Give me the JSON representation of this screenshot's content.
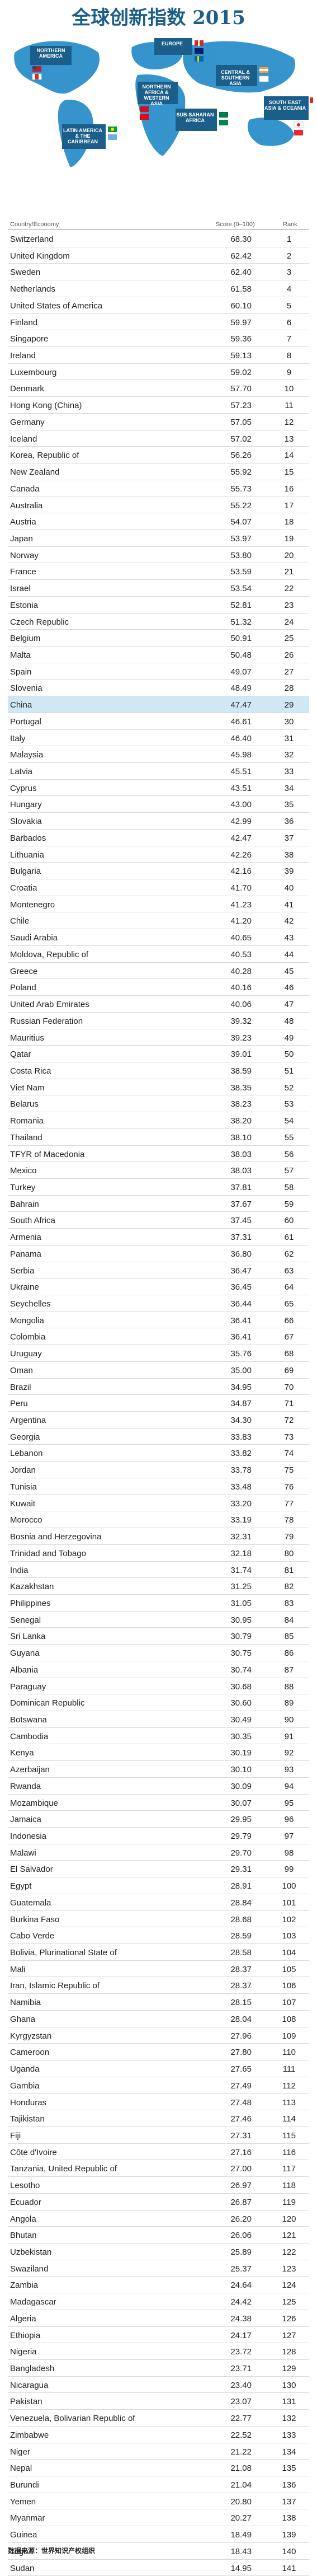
{
  "title": "全球创新指数 2015",
  "map_regions": [
    {
      "label": "NORTHERN AMERICA"
    },
    {
      "label": "EUROPE"
    },
    {
      "label": "NORTHERN AFRICA & WESTERN ASIA"
    },
    {
      "label": "CENTRAL & SOUTHERN ASIA"
    },
    {
      "label": "SOUTH EAST ASIA & OCEANIA"
    },
    {
      "label": "LATIN AMERICA & THE CARIBBEAN"
    },
    {
      "label": "SUB-SAHARAN AFRICA"
    }
  ],
  "colors": {
    "title": "#1b5e8a",
    "map_bg": "#2b8fc9",
    "highlight": "#cfe8f4"
  },
  "table": {
    "headers": {
      "country": "Country/Economy",
      "score": "Score (0–100)",
      "rank": "Rank"
    }
  },
  "chart_data": {
    "type": "table",
    "columns": [
      "Country/Economy",
      "Score (0–100)",
      "Rank"
    ],
    "rows": [
      [
        "Switzerland",
        "68.30",
        "1"
      ],
      [
        "United Kingdom",
        "62.42",
        "2"
      ],
      [
        "Sweden",
        "62.40",
        "3"
      ],
      [
        "Netherlands",
        "61.58",
        "4"
      ],
      [
        "United States of America",
        "60.10",
        "5"
      ],
      [
        "Finland",
        "59.97",
        "6"
      ],
      [
        "Singapore",
        "59.36",
        "7"
      ],
      [
        "Ireland",
        "59.13",
        "8"
      ],
      [
        "Luxembourg",
        "59.02",
        "9"
      ],
      [
        "Denmark",
        "57.70",
        "10"
      ],
      [
        "Hong Kong (China)",
        "57.23",
        "11"
      ],
      [
        "Germany",
        "57.05",
        "12"
      ],
      [
        "Iceland",
        "57.02",
        "13"
      ],
      [
        "Korea, Republic of",
        "56.26",
        "14"
      ],
      [
        "New Zealand",
        "55.92",
        "15"
      ],
      [
        "Canada",
        "55.73",
        "16"
      ],
      [
        "Australia",
        "55.22",
        "17"
      ],
      [
        "Austria",
        "54.07",
        "18"
      ],
      [
        "Japan",
        "53.97",
        "19"
      ],
      [
        "Norway",
        "53.80",
        "20"
      ],
      [
        "France",
        "53.59",
        "21"
      ],
      [
        "Israel",
        "53.54",
        "22"
      ],
      [
        "Estonia",
        "52.81",
        "23"
      ],
      [
        "Czech Republic",
        "51.32",
        "24"
      ],
      [
        "Belgium",
        "50.91",
        "25"
      ],
      [
        "Malta",
        "50.48",
        "26"
      ],
      [
        "Spain",
        "49.07",
        "27"
      ],
      [
        "Slovenia",
        "48.49",
        "28"
      ],
      [
        "China",
        "47.47",
        "29"
      ],
      [
        "Portugal",
        "46.61",
        "30"
      ],
      [
        "Italy",
        "46.40",
        "31"
      ],
      [
        "Malaysia",
        "45.98",
        "32"
      ],
      [
        "Latvia",
        "45.51",
        "33"
      ],
      [
        "Cyprus",
        "43.51",
        "34"
      ],
      [
        "Hungary",
        "43.00",
        "35"
      ],
      [
        "Slovakia",
        "42.99",
        "36"
      ],
      [
        "Barbados",
        "42.47",
        "37"
      ],
      [
        "Lithuania",
        "42.26",
        "38"
      ],
      [
        "Bulgaria",
        "42.16",
        "39"
      ],
      [
        "Croatia",
        "41.70",
        "40"
      ],
      [
        "Montenegro",
        "41.23",
        "41"
      ],
      [
        "Chile",
        "41.20",
        "42"
      ],
      [
        "Saudi Arabia",
        "40.65",
        "43"
      ],
      [
        "Moldova, Republic of",
        "40.53",
        "44"
      ],
      [
        "Greece",
        "40.28",
        "45"
      ],
      [
        "Poland",
        "40.16",
        "46"
      ],
      [
        "United Arab Emirates",
        "40.06",
        "47"
      ],
      [
        "Russian Federation",
        "39.32",
        "48"
      ],
      [
        "Mauritius",
        "39.23",
        "49"
      ],
      [
        "Qatar",
        "39.01",
        "50"
      ],
      [
        "Costa Rica",
        "38.59",
        "51"
      ],
      [
        "Viet Nam",
        "38.35",
        "52"
      ],
      [
        "Belarus",
        "38.23",
        "53"
      ],
      [
        "Romania",
        "38.20",
        "54"
      ],
      [
        "Thailand",
        "38.10",
        "55"
      ],
      [
        "TFYR of Macedonia",
        "38.03",
        "56"
      ],
      [
        "Mexico",
        "38.03",
        "57"
      ],
      [
        "Turkey",
        "37.81",
        "58"
      ],
      [
        "Bahrain",
        "37.67",
        "59"
      ],
      [
        "South Africa",
        "37.45",
        "60"
      ],
      [
        "Armenia",
        "37.31",
        "61"
      ],
      [
        "Panama",
        "36.80",
        "62"
      ],
      [
        "Serbia",
        "36.47",
        "63"
      ],
      [
        "Ukraine",
        "36.45",
        "64"
      ],
      [
        "Seychelles",
        "36.44",
        "65"
      ],
      [
        "Mongolia",
        "36.41",
        "66"
      ],
      [
        "Colombia",
        "36.41",
        "67"
      ],
      [
        "Uruguay",
        "35.76",
        "68"
      ],
      [
        "Oman",
        "35.00",
        "69"
      ],
      [
        "Brazil",
        "34.95",
        "70"
      ],
      [
        "Peru",
        "34.87",
        "71"
      ],
      [
        "Argentina",
        "34.30",
        "72"
      ],
      [
        "Georgia",
        "33.83",
        "73"
      ],
      [
        "Lebanon",
        "33.82",
        "74"
      ],
      [
        "Jordan",
        "33.78",
        "75"
      ],
      [
        "Tunisia",
        "33.48",
        "76"
      ],
      [
        "Kuwait",
        "33.20",
        "77"
      ],
      [
        "Morocco",
        "33.19",
        "78"
      ],
      [
        "Bosnia and Herzegovina",
        "32.31",
        "79"
      ],
      [
        "Trinidad and Tobago",
        "32.18",
        "80"
      ],
      [
        "India",
        "31.74",
        "81"
      ],
      [
        "Kazakhstan",
        "31.25",
        "82"
      ],
      [
        "Philippines",
        "31.05",
        "83"
      ],
      [
        "Senegal",
        "30.95",
        "84"
      ],
      [
        "Sri Lanka",
        "30.79",
        "85"
      ],
      [
        "Guyana",
        "30.75",
        "86"
      ],
      [
        "Albania",
        "30.74",
        "87"
      ],
      [
        "Paraguay",
        "30.68",
        "88"
      ],
      [
        "Dominican Republic",
        "30.60",
        "89"
      ],
      [
        "Botswana",
        "30.49",
        "90"
      ],
      [
        "Cambodia",
        "30.35",
        "91"
      ],
      [
        "Kenya",
        "30.19",
        "92"
      ],
      [
        "Azerbaijan",
        "30.10",
        "93"
      ],
      [
        "Rwanda",
        "30.09",
        "94"
      ],
      [
        "Mozambique",
        "30.07",
        "95"
      ],
      [
        "Jamaica",
        "29.95",
        "96"
      ],
      [
        "Indonesia",
        "29.79",
        "97"
      ],
      [
        "Malawi",
        "29.70",
        "98"
      ],
      [
        "El Salvador",
        "29.31",
        "99"
      ],
      [
        "Egypt",
        "28.91",
        "100"
      ],
      [
        "Guatemala",
        "28.84",
        "101"
      ],
      [
        "Burkina Faso",
        "28.68",
        "102"
      ],
      [
        "Cabo Verde",
        "28.59",
        "103"
      ],
      [
        "Bolivia, Plurinational State of",
        "28.58",
        "104"
      ],
      [
        "Mali",
        "28.37",
        "105"
      ],
      [
        "Iran, Islamic Republic of",
        "28.37",
        "106"
      ],
      [
        "Namibia",
        "28.15",
        "107"
      ],
      [
        "Ghana",
        "28.04",
        "108"
      ],
      [
        "Kyrgyzstan",
        "27.96",
        "109"
      ],
      [
        "Cameroon",
        "27.80",
        "110"
      ],
      [
        "Uganda",
        "27.65",
        "111"
      ],
      [
        "Gambia",
        "27.49",
        "112"
      ],
      [
        "Honduras",
        "27.48",
        "113"
      ],
      [
        "Tajikistan",
        "27.46",
        "114"
      ],
      [
        "Fiji",
        "27.31",
        "115"
      ],
      [
        "Côte d'Ivoire",
        "27.16",
        "116"
      ],
      [
        "Tanzania, United Republic of",
        "27.00",
        "117"
      ],
      [
        "Lesotho",
        "26.97",
        "118"
      ],
      [
        "Ecuador",
        "26.87",
        "119"
      ],
      [
        "Angola",
        "26.20",
        "120"
      ],
      [
        "Bhutan",
        "26.06",
        "121"
      ],
      [
        "Uzbekistan",
        "25.89",
        "122"
      ],
      [
        "Swaziland",
        "25.37",
        "123"
      ],
      [
        "Zambia",
        "24.64",
        "124"
      ],
      [
        "Madagascar",
        "24.42",
        "125"
      ],
      [
        "Algeria",
        "24.38",
        "126"
      ],
      [
        "Ethiopia",
        "24.17",
        "127"
      ],
      [
        "Nigeria",
        "23.72",
        "128"
      ],
      [
        "Bangladesh",
        "23.71",
        "129"
      ],
      [
        "Nicaragua",
        "23.40",
        "130"
      ],
      [
        "Pakistan",
        "23.07",
        "131"
      ],
      [
        "Venezuela, Bolivarian Republic of",
        "22.77",
        "132"
      ],
      [
        "Zimbabwe",
        "22.52",
        "133"
      ],
      [
        "Niger",
        "21.22",
        "134"
      ],
      [
        "Nepal",
        "21.08",
        "135"
      ],
      [
        "Burundi",
        "21.04",
        "136"
      ],
      [
        "Yemen",
        "20.80",
        "137"
      ],
      [
        "Myanmar",
        "20.27",
        "138"
      ],
      [
        "Guinea",
        "18.49",
        "139"
      ],
      [
        "Togo",
        "18.43",
        "140"
      ],
      [
        "Sudan",
        "14.95",
        "141"
      ]
    ],
    "highlight_row": "China"
  },
  "footer": {
    "source": "数据来源：世界知识产权组织"
  }
}
